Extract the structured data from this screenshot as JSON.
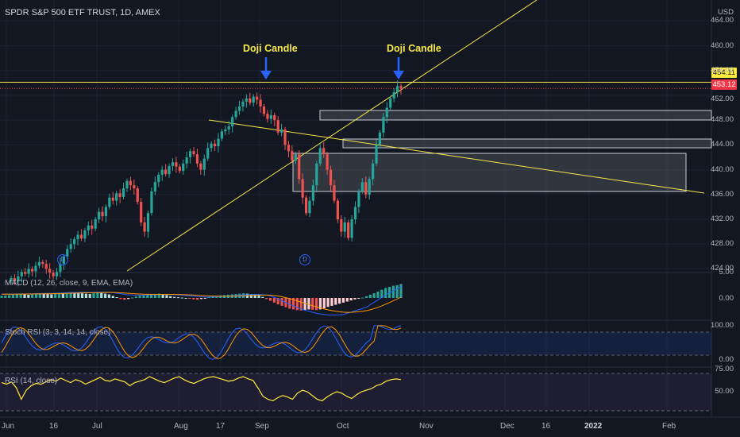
{
  "header": {
    "title": "SPDR S&P 500 ETF TRUST, 1D, AMEX",
    "currency": "USD"
  },
  "annotations": [
    "Doji Candle",
    "Doji Candle"
  ],
  "dividend_badge": "D",
  "price_tags": {
    "upper": "454.11",
    "lower": "453.12",
    "upper_color": "#ffeb3b",
    "lower_color": "#f23645"
  },
  "panes": {
    "macd_label": "MACD (12, 26, close, 9, EMA, EMA)",
    "stoch_label": "Stoch RSI (3, 3, 14, 14, close)",
    "rsi_label": "RSI (14, close)"
  },
  "colors": {
    "up": "#26a69a",
    "down": "#ef5350",
    "trendline": "#f7e948",
    "macd": "#2962ff",
    "signal": "#ff9800",
    "rsi": "#ffeb3b"
  },
  "chart_data": [
    {
      "type": "candlestick",
      "title": "SPDR S&P 500 ETF TRUST, 1D, AMEX",
      "ylabel": "USD",
      "ylim": [
        421,
        466
      ],
      "x_ticks": [
        "Jun",
        "16",
        "Jul",
        "Aug",
        "17",
        "Sep",
        "Oct",
        "Nov",
        "Dec",
        "16",
        "2022",
        "Feb"
      ],
      "y_ticks": [
        424,
        428,
        432,
        436,
        440,
        444,
        448,
        452,
        456,
        460,
        464
      ],
      "y_tick_labels": [
        "424.00",
        "428.00",
        "432.00",
        "436.00",
        "440.00",
        "444.00",
        "448.00",
        "452.00",
        "456.00",
        "460.00",
        "464.00"
      ],
      "last_price": 453.12,
      "horizontal_level": 454.11,
      "close_series": [
        422.5,
        422.0,
        422.8,
        423.5,
        423.2,
        424.0,
        423.6,
        424.5,
        425.1,
        424.8,
        424.0,
        423.4,
        422.8,
        423.5,
        424.8,
        426.0,
        427.2,
        428.0,
        428.8,
        429.5,
        428.9,
        430.2,
        431.0,
        430.5,
        432.0,
        433.2,
        432.5,
        434.0,
        435.5,
        435.0,
        436.2,
        435.6,
        437.0,
        438.2,
        437.5,
        437.0,
        434.8,
        431.5,
        430.0,
        433.0,
        436.5,
        438.0,
        439.2,
        440.0,
        439.3,
        440.6,
        441.2,
        440.5,
        439.8,
        441.0,
        442.0,
        443.0,
        442.5,
        441.0,
        440.0,
        441.8,
        443.5,
        444.2,
        443.8,
        445.0,
        446.2,
        446.5,
        447.0,
        448.5,
        449.5,
        450.2,
        451.0,
        451.5,
        450.8,
        451.8,
        451.3,
        450.2,
        449.0,
        448.2,
        448.8,
        448.0,
        446.0,
        446.5,
        444.0,
        443.0,
        441.5,
        442.5,
        438.5,
        435.5,
        433.0,
        435.0,
        437.5,
        441.0,
        443.5,
        442.5,
        440.0,
        437.5,
        435.0,
        432.0,
        430.0,
        431.5,
        429.0,
        432.0,
        434.0,
        436.5,
        438.0,
        436.0,
        438.5,
        441.0,
        444.0,
        446.0,
        448.5,
        450.0,
        451.5,
        452.5,
        453.5,
        453.12
      ]
    },
    {
      "type": "bar+line",
      "title": "MACD (12, 26, close, 9, EMA, EMA)",
      "y_tick_labels": [
        "5.00",
        "0.00"
      ],
      "histogram": [
        0.6,
        0.7,
        0.8,
        0.9,
        1.0,
        1.1,
        1.0,
        0.9,
        1.0,
        1.2,
        1.3,
        1.2,
        1.1,
        1.0,
        1.2,
        1.4,
        1.3,
        1.5,
        1.6,
        1.5,
        1.4,
        1.3,
        1.2,
        1.1,
        1.3,
        1.5,
        1.4,
        1.2,
        1.0,
        0.6,
        0.2,
        -0.3,
        -0.5,
        -0.3,
        0.1,
        0.4,
        0.6,
        0.8,
        0.9,
        1.0,
        1.1,
        1.2,
        1.0,
        0.8,
        0.5,
        0.3,
        0.2,
        0.1,
        0.0,
        -0.2,
        -0.4,
        -0.5,
        -0.3,
        -0.1,
        0.2,
        0.4,
        0.6,
        0.7,
        0.8,
        0.9,
        1.0,
        1.1,
        1.2,
        1.3,
        1.2,
        1.1,
        1.0,
        0.7,
        0.3,
        -0.3,
        -0.8,
        -1.3,
        -1.8,
        -2.2,
        -2.6,
        -3.0,
        -3.2,
        -3.4,
        -3.5,
        -3.4,
        -3.2,
        -3.3,
        -3.4,
        -3.2,
        -2.9,
        -2.5,
        -2.2,
        -1.9,
        -1.6,
        -1.3,
        -1.0,
        -0.7,
        -0.4,
        -0.2,
        0.1,
        0.5,
        0.9,
        1.3,
        1.8,
        2.3,
        2.8,
        3.1,
        3.4,
        3.6,
        3.9
      ]
    },
    {
      "type": "line",
      "title": "Stoch RSI (3, 3, 14, 14, close)",
      "y_tick_labels": [
        "100.00",
        "0.00"
      ],
      "ylim": [
        0,
        100
      ]
    },
    {
      "type": "line",
      "title": "RSI (14, close)",
      "y_tick_labels": [
        "75.00",
        "50.00"
      ],
      "ylim": [
        0,
        100
      ],
      "values": [
        62,
        60,
        63,
        55,
        40,
        52,
        58,
        61,
        60,
        63,
        66,
        64,
        68,
        65,
        62,
        66,
        64,
        60,
        63,
        66,
        69,
        65,
        64,
        67,
        65,
        63,
        58,
        62,
        64,
        66,
        70,
        67,
        64,
        62,
        65,
        68,
        70,
        66,
        63,
        61,
        64,
        67,
        69,
        70,
        68,
        66,
        64,
        65,
        68,
        70,
        67,
        65,
        55,
        44,
        40,
        38,
        42,
        45,
        43,
        40,
        48,
        52,
        50,
        45,
        40,
        38,
        43,
        47,
        50,
        48,
        44,
        41,
        46,
        50,
        52,
        54,
        58,
        60,
        64,
        66,
        67,
        66
      ]
    }
  ]
}
